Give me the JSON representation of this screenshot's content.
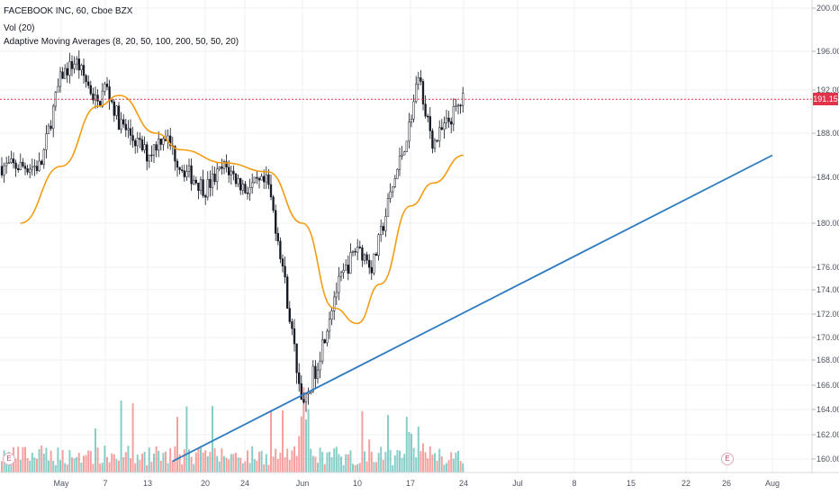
{
  "header": {
    "symbol": "FACEBOOK INC, 60, Cboe BZX",
    "volume_label": "Vol (20)",
    "indicator_label": "Adaptive Moving Averages (8, 20, 50, 100, 200, 50, 50, 20)"
  },
  "current_price": "191.15",
  "events": [
    "E",
    "E"
  ],
  "colors": {
    "up": "#26a69a",
    "down": "#ef5350",
    "body": "#131722",
    "ama": "#f39c12",
    "trendline": "#2e7bbf",
    "price_line": "#e3334a",
    "grid": "#eef0f3"
  },
  "chart_data": {
    "type": "candlestick",
    "title": "FACEBOOK INC, 60, Cboe BZX",
    "y_axis": {
      "side": "right",
      "ticks": [
        "160.00",
        "162.00",
        "164.00",
        "166.00",
        "168.00",
        "170.00",
        "172.00",
        "174.00",
        "176.00",
        "180.00",
        "184.00",
        "188.00",
        "192.00",
        "196.00",
        "200.00"
      ]
    },
    "x_axis": {
      "ticks": [
        "May",
        "7",
        "13",
        "20",
        "24",
        "Jun",
        "10",
        "17",
        "24",
        "Jul",
        "8",
        "15",
        "22",
        "26",
        "Aug"
      ]
    },
    "price_series_approx": [
      {
        "date": "Apr 30",
        "price": 185.0
      },
      {
        "date": "May 1",
        "price": 193.5
      },
      {
        "date": "May 3",
        "price": 195.0
      },
      {
        "date": "May 6",
        "price": 190.5
      },
      {
        "date": "May 7",
        "price": 192.5
      },
      {
        "date": "May 9",
        "price": 189.0
      },
      {
        "date": "May 13",
        "price": 186.0
      },
      {
        "date": "May 15",
        "price": 188.0
      },
      {
        "date": "May 17",
        "price": 185.0
      },
      {
        "date": "May 20",
        "price": 183.0
      },
      {
        "date": "May 22",
        "price": 185.0
      },
      {
        "date": "May 24",
        "price": 183.0
      },
      {
        "date": "May 28",
        "price": 183.5
      },
      {
        "date": "May 30",
        "price": 178.0
      },
      {
        "date": "Jun 3",
        "price": 164.0
      },
      {
        "date": "Jun 5",
        "price": 168.0
      },
      {
        "date": "Jun 7",
        "price": 173.5
      },
      {
        "date": "Jun 10",
        "price": 178.0
      },
      {
        "date": "Jun 12",
        "price": 176.0
      },
      {
        "date": "Jun 14",
        "price": 181.5
      },
      {
        "date": "Jun 17",
        "price": 189.0
      },
      {
        "date": "Jun 18",
        "price": 193.5
      },
      {
        "date": "Jun 20",
        "price": 187.0
      },
      {
        "date": "Jun 24",
        "price": 191.2
      }
    ],
    "adaptive_moving_average": [
      {
        "date": "Apr 29",
        "value": 180.0
      },
      {
        "date": "May 1",
        "value": 185.0
      },
      {
        "date": "May 6",
        "value": 190.5
      },
      {
        "date": "May 9",
        "value": 191.5
      },
      {
        "date": "May 14",
        "value": 188.0
      },
      {
        "date": "May 17",
        "value": 186.5
      },
      {
        "date": "May 22",
        "value": 185.3
      },
      {
        "date": "May 28",
        "value": 184.5
      },
      {
        "date": "Jun 3",
        "value": 180.0
      },
      {
        "date": "Jun 7",
        "value": 172.5
      },
      {
        "date": "Jun 10",
        "value": 171.2
      },
      {
        "date": "Jun 13",
        "value": 174.5
      },
      {
        "date": "Jun 17",
        "value": 181.5
      },
      {
        "date": "Jun 20",
        "value": 183.5
      },
      {
        "date": "Jun 24",
        "value": 186.0
      }
    ],
    "trendline": [
      {
        "date": "May 16",
        "value": 159.8
      },
      {
        "date": "Aug 1",
        "value": 186.0
      }
    ],
    "volume_series": "histogram at bottom, red/green bars, spike near Jun 3 and Jun 18"
  }
}
